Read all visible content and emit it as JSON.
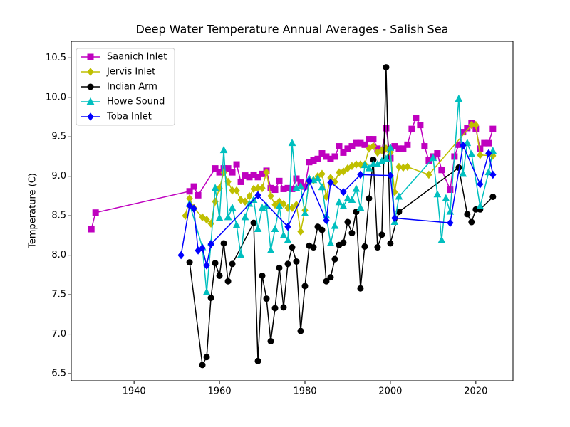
{
  "chart_data": {
    "type": "line",
    "title": "Deep Water Temperature Annual Averages - Salish Sea",
    "y_label": "Temperature (C)",
    "xlim": [
      1925.3,
      2028.7
    ],
    "ylim": [
      6.41,
      10.71
    ],
    "xticks": [
      1940,
      1960,
      1980,
      2000,
      2020
    ],
    "yticks": [
      {
        "value": 6.5,
        "label": "6.5"
      },
      {
        "value": 7.0,
        "label": "7.0"
      },
      {
        "value": 7.5,
        "label": "7.5"
      },
      {
        "value": 8.0,
        "label": "8.0"
      },
      {
        "value": 8.5,
        "label": "8.5"
      },
      {
        "value": 9.0,
        "label": "9.0"
      },
      {
        "value": 9.5,
        "label": "9.5"
      },
      {
        "value": 10.0,
        "label": "10.0"
      },
      {
        "value": 10.5,
        "label": "10.5"
      }
    ],
    "grid": false,
    "legend": "upper left",
    "series": [
      {
        "name": "Saanich Inlet",
        "color": "#bf00bf",
        "marker": "square",
        "x": [
          1930,
          1931,
          1953,
          1954,
          1955,
          1959,
          1960,
          1961,
          1962,
          1963,
          1964,
          1965,
          1966,
          1967,
          1968,
          1969,
          1970,
          1971,
          1972,
          1973,
          1974,
          1975,
          1976,
          1977,
          1978,
          1979,
          1980,
          1981,
          1982,
          1983,
          1984,
          1985,
          1986,
          1987,
          1988,
          1989,
          1990,
          1991,
          1992,
          1993,
          1994,
          1995,
          1996,
          1997,
          1998,
          1999,
          2000,
          2001,
          2002,
          2003,
          2004,
          2005,
          2006,
          2007,
          2008,
          2009,
          2010,
          2011,
          2012,
          2014,
          2015,
          2016,
          2017,
          2018,
          2019,
          2020,
          2021,
          2022,
          2023,
          2024
        ],
        "values": [
          8.33,
          8.54,
          8.81,
          8.87,
          8.76,
          9.1,
          9.05,
          9.1,
          9.1,
          9.05,
          9.15,
          8.93,
          9.01,
          8.99,
          9.02,
          8.99,
          9.03,
          9.07,
          8.85,
          8.83,
          8.94,
          8.84,
          8.85,
          8.84,
          8.97,
          8.92,
          8.87,
          9.18,
          9.2,
          9.22,
          9.29,
          9.25,
          9.22,
          9.25,
          9.38,
          9.3,
          9.35,
          9.38,
          9.42,
          9.42,
          9.4,
          9.47,
          9.47,
          9.35,
          9.33,
          9.61,
          9.23,
          9.38,
          9.35,
          9.35,
          9.4,
          9.6,
          9.74,
          9.65,
          9.38,
          9.2,
          9.25,
          9.29,
          9.08,
          8.83,
          9.25,
          9.4,
          9.56,
          9.61,
          9.67,
          9.6,
          9.35,
          9.42,
          9.42,
          9.6
        ]
      },
      {
        "name": "Jervis Inlet",
        "color": "#bfbf00",
        "marker": "diamond",
        "x": [
          1952,
          1953,
          1954,
          1956,
          1957,
          1958,
          1959,
          1960,
          1961,
          1962,
          1963,
          1964,
          1965,
          1966,
          1967,
          1968,
          1969,
          1970,
          1971,
          1972,
          1973,
          1974,
          1975,
          1976,
          1977,
          1978,
          1979,
          1980,
          1981,
          1982,
          1983,
          1984,
          1985,
          1986,
          1987,
          1988,
          1989,
          1990,
          1991,
          1992,
          1993,
          1994,
          1995,
          1996,
          1997,
          1998,
          1999,
          2000,
          2001,
          2002,
          2003,
          2004,
          2009,
          2019,
          2020,
          2021,
          2024
        ],
        "values": [
          8.5,
          8.72,
          8.6,
          8.48,
          8.45,
          8.4,
          8.68,
          8.85,
          9.05,
          8.93,
          8.82,
          8.82,
          8.7,
          8.68,
          8.75,
          8.84,
          8.85,
          8.85,
          9.05,
          8.75,
          8.64,
          8.68,
          8.65,
          8.6,
          8.6,
          8.64,
          8.3,
          8.57,
          8.93,
          8.95,
          9.0,
          9.03,
          8.74,
          8.98,
          8.93,
          9.05,
          9.06,
          9.1,
          9.13,
          9.15,
          9.15,
          9.15,
          9.35,
          9.38,
          9.3,
          9.33,
          9.35,
          9.3,
          8.8,
          9.12,
          9.11,
          9.12,
          9.02,
          9.65,
          9.65,
          9.27,
          9.26
        ]
      },
      {
        "name": "Indian Arm",
        "color": "#000000",
        "marker": "circle",
        "x": [
          1953,
          1956,
          1957,
          1958,
          1959,
          1960,
          1961,
          1962,
          1963,
          1968,
          1969,
          1970,
          1971,
          1972,
          1973,
          1974,
          1975,
          1976,
          1977,
          1978,
          1979,
          1980,
          1981,
          1982,
          1983,
          1984,
          1985,
          1986,
          1987,
          1988,
          1989,
          1990,
          1991,
          1992,
          1993,
          1994,
          1995,
          1996,
          1997,
          1998,
          1999,
          2000,
          2002,
          2016,
          2018,
          2019,
          2020,
          2021,
          2024
        ],
        "values": [
          7.91,
          6.61,
          6.71,
          7.46,
          7.9,
          7.74,
          8.15,
          7.67,
          7.89,
          8.41,
          6.66,
          7.74,
          7.45,
          6.91,
          7.33,
          7.84,
          7.34,
          7.89,
          8.1,
          7.92,
          7.04,
          7.61,
          8.12,
          8.1,
          8.36,
          8.32,
          7.67,
          7.72,
          7.95,
          8.13,
          8.16,
          8.42,
          8.28,
          8.55,
          7.58,
          8.11,
          8.72,
          9.21,
          8.1,
          8.26,
          10.38,
          8.15,
          8.55,
          9.11,
          8.52,
          8.42,
          8.58,
          8.58,
          8.74
        ]
      },
      {
        "name": "Howe Sound",
        "color": "#00bfbf",
        "marker": "triangle",
        "x": [
          1953,
          1956,
          1957,
          1958,
          1959,
          1960,
          1961,
          1962,
          1963,
          1964,
          1965,
          1966,
          1967,
          1968,
          1969,
          1970,
          1971,
          1972,
          1973,
          1974,
          1975,
          1976,
          1977,
          1978,
          1979,
          1980,
          1981,
          1982,
          1983,
          1984,
          1985,
          1986,
          1987,
          1988,
          1989,
          1990,
          1991,
          1992,
          1993,
          1994,
          1995,
          1996,
          1997,
          1998,
          1999,
          2000,
          2001,
          2002,
          2010,
          2011,
          2012,
          2013,
          2014,
          2016,
          2017,
          2018,
          2019,
          2021,
          2023,
          2024
        ],
        "values": [
          8.65,
          8.1,
          7.53,
          8.15,
          8.85,
          8.47,
          9.33,
          8.48,
          8.6,
          8.38,
          8.0,
          8.48,
          8.65,
          8.7,
          8.33,
          8.6,
          8.62,
          8.06,
          8.33,
          8.62,
          8.25,
          8.19,
          9.42,
          8.85,
          8.87,
          8.53,
          8.97,
          8.95,
          8.97,
          8.86,
          8.5,
          8.15,
          8.37,
          8.67,
          8.62,
          8.72,
          8.7,
          8.84,
          8.6,
          9.14,
          9.1,
          9.15,
          9.15,
          9.19,
          9.22,
          9.36,
          8.42,
          8.74,
          9.23,
          8.77,
          8.19,
          8.72,
          8.55,
          9.98,
          9.03,
          9.42,
          9.28,
          8.62,
          9.05,
          9.32
        ]
      },
      {
        "name": "Toba Inlet",
        "color": "#0000ff",
        "marker": "diamond",
        "x": [
          1951,
          1953,
          1954,
          1955,
          1956,
          1957,
          1958,
          1969,
          1976,
          1981,
          1985,
          1986,
          1989,
          1993,
          2000,
          2001,
          2014,
          2017,
          2021,
          2023,
          2024
        ],
        "values": [
          8.0,
          8.63,
          8.59,
          8.06,
          8.09,
          7.87,
          8.14,
          8.76,
          8.36,
          8.94,
          8.44,
          8.92,
          8.8,
          9.02,
          9.01,
          8.47,
          8.41,
          9.39,
          8.9,
          9.29,
          9.02
        ]
      }
    ]
  }
}
